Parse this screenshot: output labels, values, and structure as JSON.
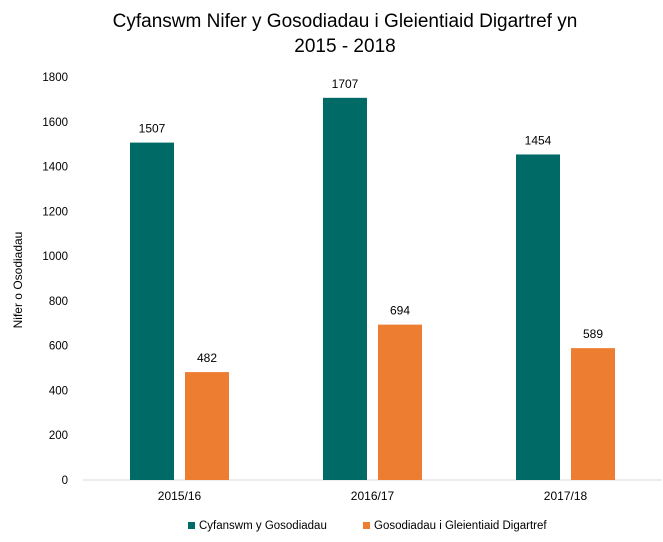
{
  "chart_data": {
    "type": "bar",
    "title": [
      "Cyfanswm Nifer y Gosodiadau i Gleientiaid Digartref yn",
      "2015 - 2018"
    ],
    "xlabel": "",
    "ylabel": "Nifer o Osodiadau",
    "ylim": [
      0,
      1800
    ],
    "yticks": [
      0,
      200,
      400,
      600,
      800,
      1000,
      1200,
      1400,
      1600,
      1800
    ],
    "categories": [
      "2015/16",
      "2016/17",
      "2017/18"
    ],
    "series": [
      {
        "name": "Cyfanswm y Gosodiadau",
        "color": "#006a67",
        "values": [
          1507,
          1707,
          1454
        ]
      },
      {
        "name": "Gosodiadau i Gleientiaid Digartref",
        "color": "#ed7d31",
        "values": [
          482,
          694,
          589
        ]
      }
    ],
    "grid": false,
    "legend": "bottom",
    "data_labels": true
  }
}
